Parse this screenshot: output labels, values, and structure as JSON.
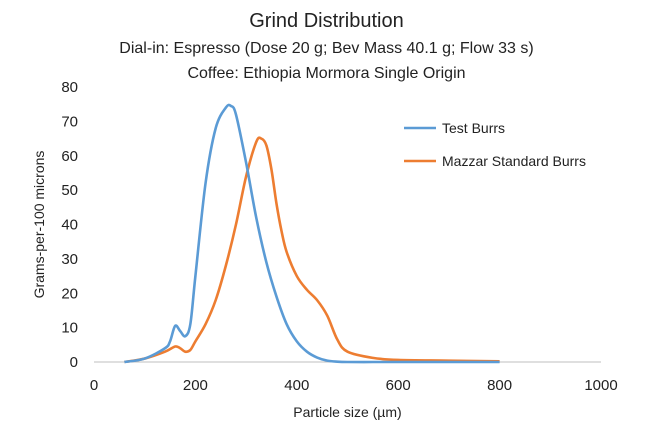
{
  "chart_data": {
    "type": "line",
    "title": "Grind Distribution",
    "subtitle_lines": [
      "Dial-in: Espresso (Dose 20 g; Bev Mass 40.1 g; Flow 33 s)",
      "Coffee: Ethiopia Mormora Single Origin"
    ],
    "xlabel": "Particle size (µm)",
    "ylabel": "Grams-per-100 microns",
    "xlim": [
      0,
      1000
    ],
    "ylim": [
      0,
      80
    ],
    "xticks": [
      0,
      200,
      400,
      600,
      800,
      1000
    ],
    "yticks": [
      0,
      10,
      20,
      30,
      40,
      50,
      60,
      70,
      80
    ],
    "grid": false,
    "legend_position": "top-right",
    "series": [
      {
        "name": "Test Burrs",
        "color": "#5b9bd5",
        "x": [
          60,
          100,
          140,
          150,
          160,
          170,
          180,
          190,
          200,
          220,
          240,
          260,
          270,
          280,
          300,
          320,
          340,
          360,
          380,
          400,
          420,
          440,
          460,
          480,
          500,
          550,
          600,
          700,
          800
        ],
        "y": [
          0,
          1,
          4,
          6,
          10.5,
          9,
          7.5,
          11,
          25,
          52,
          68,
          74,
          74.5,
          72,
          58,
          42,
          29,
          19,
          11,
          6,
          3,
          1.3,
          0.4,
          0.1,
          0,
          0,
          0,
          0,
          0
        ]
      },
      {
        "name": "Mazzar Standard Burrs",
        "color": "#ed7d31",
        "x": [
          60,
          100,
          140,
          160,
          170,
          180,
          190,
          200,
          220,
          240,
          260,
          280,
          300,
          320,
          330,
          340,
          350,
          360,
          370,
          380,
          400,
          420,
          440,
          460,
          480,
          500,
          550,
          600,
          700,
          800
        ],
        "y": [
          0,
          1,
          3,
          4.5,
          4,
          3,
          3.5,
          6,
          11,
          18,
          28,
          40,
          54,
          64,
          65,
          63,
          56,
          46,
          38,
          32,
          25,
          21,
          18,
          13.5,
          6.5,
          3,
          1.2,
          0.6,
          0.4,
          0.2
        ]
      }
    ]
  }
}
